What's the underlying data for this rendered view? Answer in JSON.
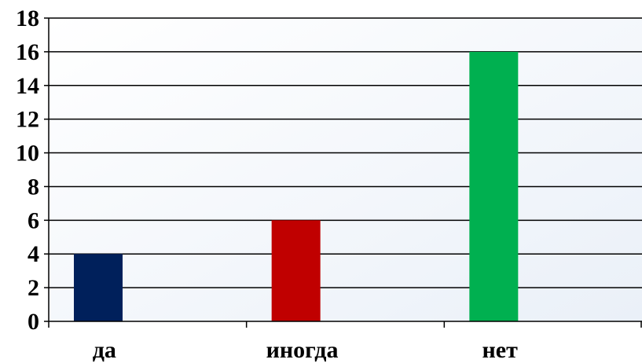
{
  "chart_data": {
    "type": "bar",
    "categories": [
      "да",
      "иногда",
      "нет"
    ],
    "values": [
      4,
      6,
      16
    ],
    "colors": [
      "#00205B",
      "#C00000",
      "#00B050"
    ],
    "ylim": [
      0,
      18
    ],
    "ytick_step": 2,
    "grid": true,
    "legend": false,
    "plot_background": [
      "#ffffff",
      "#eaf0f8"
    ]
  }
}
